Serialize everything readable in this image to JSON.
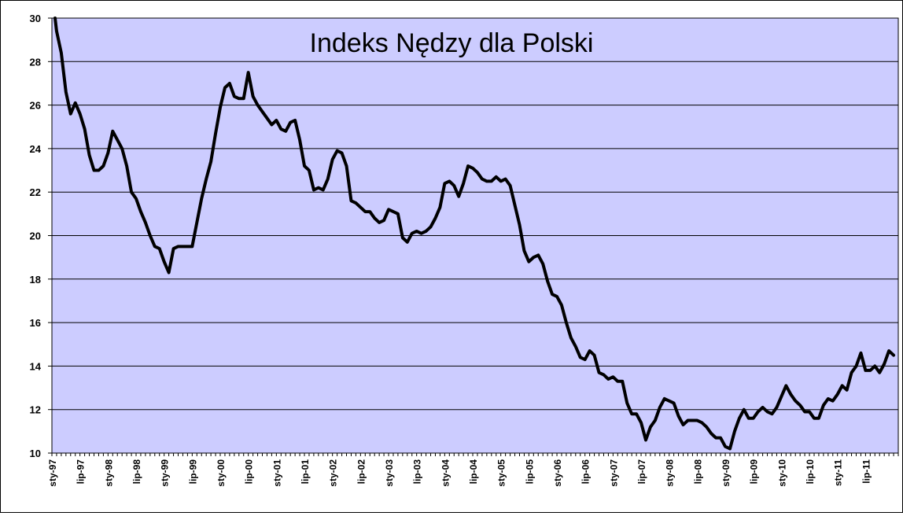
{
  "chart_data": {
    "type": "line",
    "title": "Indeks Nędzy dla Polski",
    "xlabel": "",
    "ylabel": "",
    "ylim": [
      10,
      30
    ],
    "yticks": [
      "10",
      "12",
      "14",
      "16",
      "18",
      "20",
      "22",
      "24",
      "26",
      "28",
      "30"
    ],
    "grid": true,
    "legend": "none",
    "colors": {
      "plot_background": "#ccccff",
      "line": "#000000",
      "grid": "#000000"
    },
    "x_tick_labels": [
      "sty-97",
      "lip-97",
      "sty-98",
      "lip-98",
      "sty-99",
      "lip-99",
      "sty-00",
      "lip-00",
      "sty-01",
      "lip-01",
      "sty-02",
      "lip-02",
      "sty-03",
      "lip-03",
      "sty-04",
      "lip-04",
      "sty-05",
      "lip-05",
      "sty-06",
      "lip-06",
      "sty-07",
      "lip-07",
      "sty-08",
      "lip-08",
      "sty-09",
      "lip-09",
      "sty-10",
      "lip-10",
      "sty-11",
      "lip-11"
    ],
    "x_start": "1997-01",
    "series": [
      {
        "values": [
          30.0,
          29.4,
          28.4,
          26.6,
          25.6,
          26.1,
          25.6,
          24.9,
          23.7,
          23.0,
          23.0,
          23.2,
          23.8,
          24.8,
          24.4,
          24.0,
          23.2,
          22.0,
          21.7,
          21.1,
          20.6,
          20.0,
          19.5,
          19.4,
          18.8,
          18.3,
          19.4,
          19.5,
          19.5,
          19.5,
          19.5,
          20.6,
          21.7,
          22.6,
          23.4,
          24.7,
          25.9,
          26.8,
          27.0,
          26.4,
          26.3,
          26.3,
          27.5,
          26.4,
          26.0,
          25.7,
          25.4,
          25.1,
          25.3,
          24.9,
          24.8,
          25.2,
          25.3,
          24.4,
          23.2,
          23.0,
          22.1,
          22.2,
          22.1,
          22.6,
          23.5,
          23.9,
          23.8,
          23.2,
          21.6,
          21.5,
          21.3,
          21.1,
          21.1,
          20.8,
          20.6,
          20.7,
          21.2,
          21.1,
          21.0,
          19.9,
          19.7,
          20.1,
          20.2,
          20.1,
          20.2,
          20.4,
          20.8,
          21.3,
          22.4,
          22.5,
          22.3,
          21.8,
          22.4,
          23.2,
          23.1,
          22.9,
          22.6,
          22.5,
          22.5,
          22.7,
          22.5,
          22.6,
          22.3,
          21.4,
          20.5,
          19.3,
          18.8,
          19.0,
          19.1,
          18.7,
          17.9,
          17.3,
          17.2,
          16.8,
          16.0,
          15.3,
          14.9,
          14.4,
          14.3,
          14.7,
          14.5,
          13.7,
          13.6,
          13.4,
          13.5,
          13.3,
          13.3,
          12.3,
          11.8,
          11.8,
          11.4,
          10.6,
          11.2,
          11.5,
          12.1,
          12.5,
          12.4,
          12.3,
          11.7,
          11.3,
          11.5,
          11.5,
          11.5,
          11.4,
          11.2,
          10.9,
          10.7,
          10.7,
          10.3,
          10.2,
          11.0,
          11.6,
          12.0,
          11.6,
          11.6,
          11.9,
          12.1,
          11.9,
          11.8,
          12.1,
          12.6,
          13.1,
          12.7,
          12.4,
          12.2,
          11.9,
          11.9,
          11.6,
          11.6,
          12.2,
          12.5,
          12.4,
          12.7,
          13.1,
          12.9,
          13.7,
          14.0,
          14.6,
          13.8,
          13.8,
          14.0,
          13.7,
          14.1,
          14.7,
          14.5
        ]
      }
    ]
  }
}
